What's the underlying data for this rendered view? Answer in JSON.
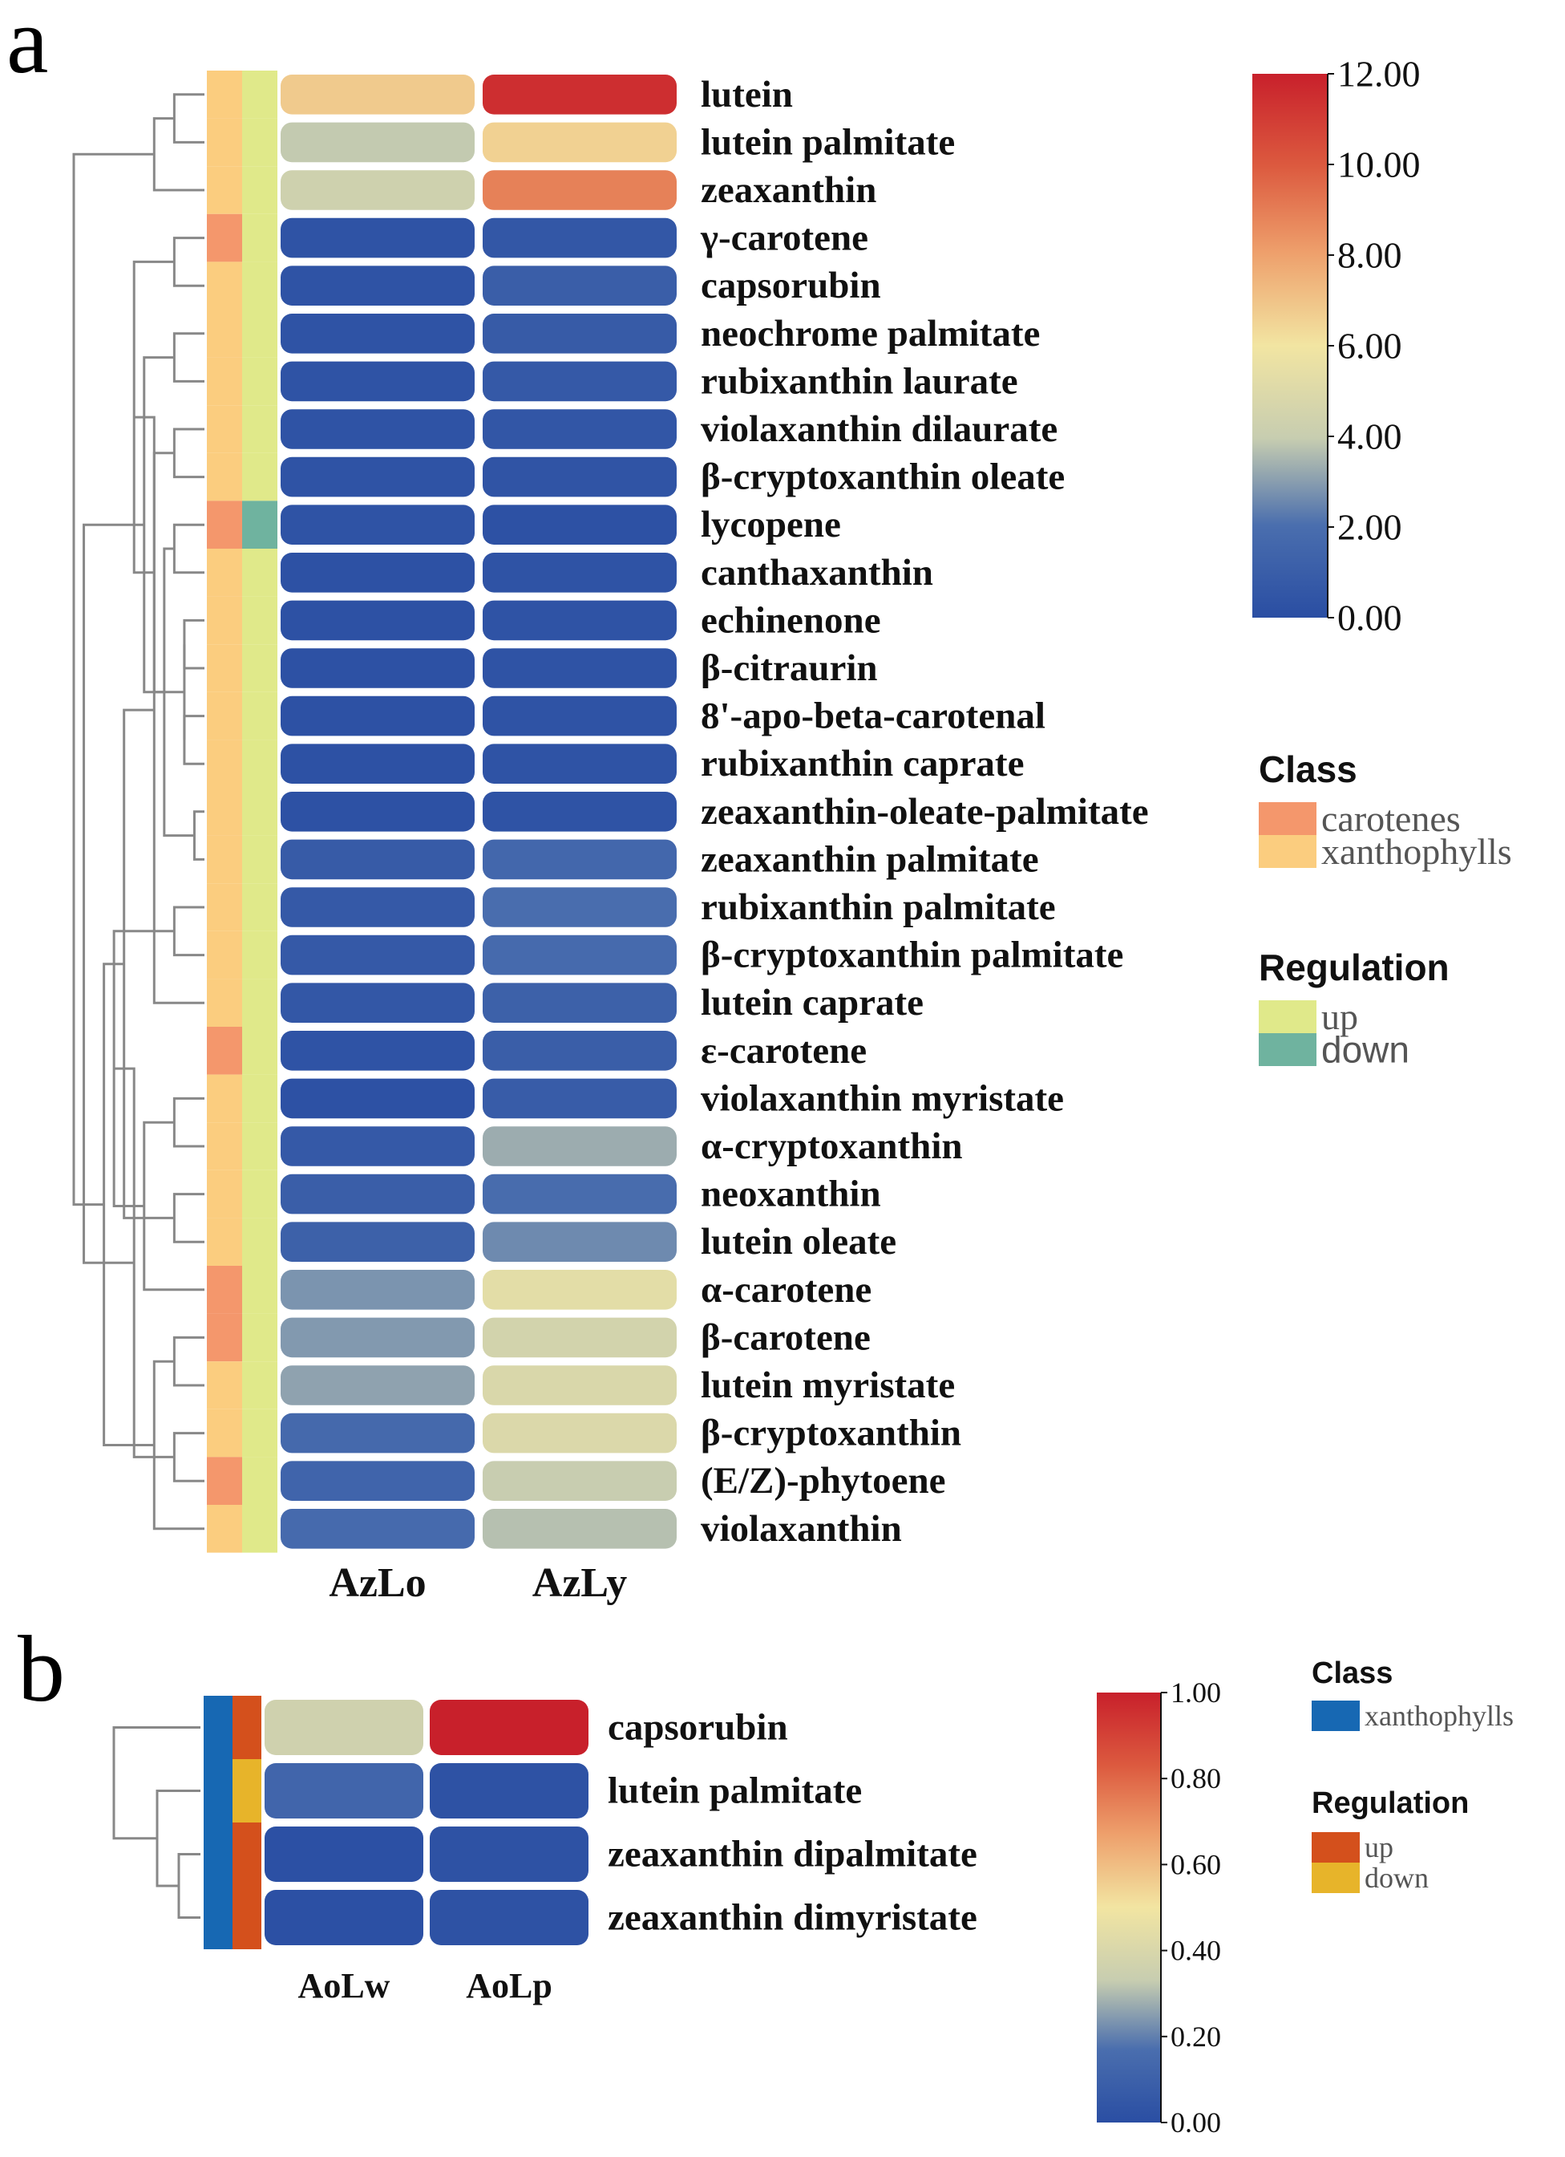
{
  "chart_data": [
    {
      "panel": "a",
      "type": "heatmap",
      "columns": [
        "AzLo",
        "AzLy"
      ],
      "rows": [
        {
          "name": "lutein",
          "class": "xanthophylls",
          "regulation": "up",
          "values": [
            6.8,
            11.5
          ]
        },
        {
          "name": "lutein palmitate",
          "class": "xanthophylls",
          "regulation": "up",
          "values": [
            3.9,
            6.6
          ]
        },
        {
          "name": "zeaxanthin",
          "class": "xanthophylls",
          "regulation": "up",
          "values": [
            4.3,
            8.9
          ]
        },
        {
          "name": "γ-carotene",
          "class": "carotenes",
          "regulation": "up",
          "values": [
            0.3,
            0.6
          ]
        },
        {
          "name": "capsorubin",
          "class": "xanthophylls",
          "regulation": "up",
          "values": [
            0.3,
            1.0
          ]
        },
        {
          "name": "neochrome palmitate",
          "class": "xanthophylls",
          "regulation": "up",
          "values": [
            0.3,
            0.8
          ]
        },
        {
          "name": "rubixanthin laurate",
          "class": "xanthophylls",
          "regulation": "up",
          "values": [
            0.3,
            0.7
          ]
        },
        {
          "name": "violaxanthin dilaurate",
          "class": "xanthophylls",
          "regulation": "up",
          "values": [
            0.3,
            0.5
          ]
        },
        {
          "name": "β-cryptoxanthin oleate",
          "class": "xanthophylls",
          "regulation": "up",
          "values": [
            0.3,
            0.4
          ]
        },
        {
          "name": "lycopene",
          "class": "carotenes",
          "regulation": "down",
          "values": [
            0.3,
            0.2
          ]
        },
        {
          "name": "canthaxanthin",
          "class": "xanthophylls",
          "regulation": "up",
          "values": [
            0.2,
            0.3
          ]
        },
        {
          "name": "echinenone",
          "class": "xanthophylls",
          "regulation": "up",
          "values": [
            0.2,
            0.3
          ]
        },
        {
          "name": "β-citraurin",
          "class": "xanthophylls",
          "regulation": "up",
          "values": [
            0.2,
            0.3
          ]
        },
        {
          "name": "8'-apo-beta-carotenal",
          "class": "xanthophylls",
          "regulation": "up",
          "values": [
            0.2,
            0.3
          ]
        },
        {
          "name": "rubixanthin caprate",
          "class": "xanthophylls",
          "regulation": "up",
          "values": [
            0.2,
            0.3
          ]
        },
        {
          "name": "zeaxanthin-oleate-palmitate",
          "class": "xanthophylls",
          "regulation": "up",
          "values": [
            0.2,
            0.3
          ]
        },
        {
          "name": "zeaxanthin palmitate",
          "class": "xanthophylls",
          "regulation": "up",
          "values": [
            0.8,
            1.6
          ]
        },
        {
          "name": "rubixanthin palmitate",
          "class": "xanthophylls",
          "regulation": "up",
          "values": [
            0.7,
            2.0
          ]
        },
        {
          "name": "β-cryptoxanthin palmitate",
          "class": "xanthophylls",
          "regulation": "up",
          "values": [
            0.7,
            1.8
          ]
        },
        {
          "name": "lutein caprate",
          "class": "xanthophylls",
          "regulation": "up",
          "values": [
            0.6,
            1.2
          ]
        },
        {
          "name": "ε-carotene",
          "class": "carotenes",
          "regulation": "up",
          "values": [
            0.3,
            1.0
          ]
        },
        {
          "name": "violaxanthin myristate",
          "class": "xanthophylls",
          "regulation": "up",
          "values": [
            0.2,
            0.9
          ]
        },
        {
          "name": "α-cryptoxanthin",
          "class": "xanthophylls",
          "regulation": "up",
          "values": [
            0.7,
            3.3
          ]
        },
        {
          "name": "neoxanthin",
          "class": "xanthophylls",
          "regulation": "up",
          "values": [
            1.0,
            1.9
          ]
        },
        {
          "name": "lutein oleate",
          "class": "xanthophylls",
          "regulation": "up",
          "values": [
            1.2,
            2.6
          ]
        },
        {
          "name": "α-carotene",
          "class": "carotenes",
          "regulation": "up",
          "values": [
            2.8,
            5.3
          ]
        },
        {
          "name": "β-carotene",
          "class": "carotenes",
          "regulation": "up",
          "values": [
            2.9,
            4.5
          ]
        },
        {
          "name": "lutein myristate",
          "class": "xanthophylls",
          "regulation": "up",
          "values": [
            3.1,
            4.8
          ]
        },
        {
          "name": "β-cryptoxanthin",
          "class": "xanthophylls",
          "regulation": "up",
          "values": [
            1.7,
            4.9
          ]
        },
        {
          "name": "(E/Z)-phytoene",
          "class": "carotenes",
          "regulation": "up",
          "values": [
            1.4,
            4.0
          ]
        },
        {
          "name": "violaxanthin",
          "class": "xanthophylls",
          "regulation": "up",
          "values": [
            1.8,
            3.7
          ]
        }
      ],
      "colorbar": {
        "min": 0,
        "max": 12,
        "ticks": [
          "0.00",
          "2.00",
          "4.00",
          "6.00",
          "8.00",
          "10.00",
          "12.00"
        ]
      },
      "legend_class": {
        "title": "Class",
        "items": [
          {
            "label": "carotenes",
            "color": "#f4976c"
          },
          {
            "label": "xanthophylls",
            "color": "#fbcd7f"
          }
        ]
      },
      "legend_regulation": {
        "title": "Regulation",
        "items": [
          {
            "label": "up",
            "color": "#e0e98a"
          },
          {
            "label": "down",
            "color": "#6fb39f"
          }
        ]
      }
    },
    {
      "panel": "b",
      "type": "heatmap",
      "columns": [
        "AoLw",
        "AoLp"
      ],
      "rows": [
        {
          "name": "capsorubin",
          "class": "xanthophylls",
          "regulation": "up",
          "values": [
            0.36,
            1.0
          ]
        },
        {
          "name": "lutein palmitate",
          "class": "xanthophylls",
          "regulation": "down",
          "values": [
            0.12,
            0.02
          ]
        },
        {
          "name": "zeaxanthin dipalmitate",
          "class": "xanthophylls",
          "regulation": "up",
          "values": [
            0.01,
            0.02
          ]
        },
        {
          "name": "zeaxanthin dimyristate",
          "class": "xanthophylls",
          "regulation": "up",
          "values": [
            0.01,
            0.02
          ]
        }
      ],
      "colorbar": {
        "min": 0,
        "max": 1,
        "ticks": [
          "0.00",
          "0.20",
          "0.40",
          "0.60",
          "0.80",
          "1.00"
        ]
      },
      "legend_class": {
        "title": "Class",
        "items": [
          {
            "label": "xanthophylls",
            "color": "#1768b3"
          }
        ]
      },
      "legend_regulation": {
        "title": "Regulation",
        "items": [
          {
            "label": "up",
            "color": "#d4501c"
          },
          {
            "label": "down",
            "color": "#e7b42a"
          }
        ]
      }
    }
  ]
}
